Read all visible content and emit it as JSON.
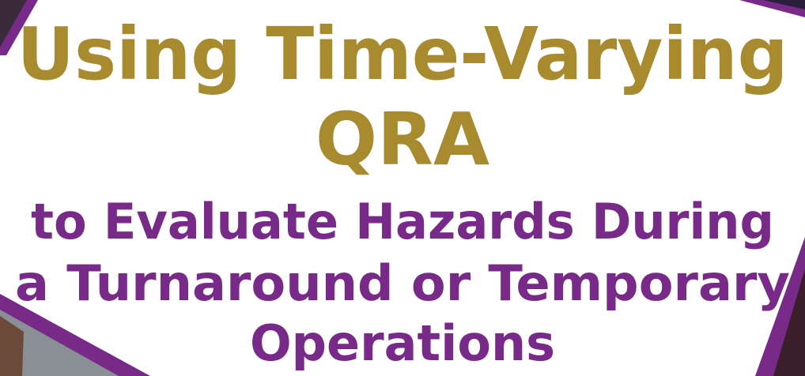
{
  "header": {
    "title_lines": [
      "Using Time-Varying",
      "QRA"
    ],
    "subtitle_lines": [
      "to Evaluate Hazards During",
      "a Turnaround or Temporary",
      "Operations"
    ]
  }
}
